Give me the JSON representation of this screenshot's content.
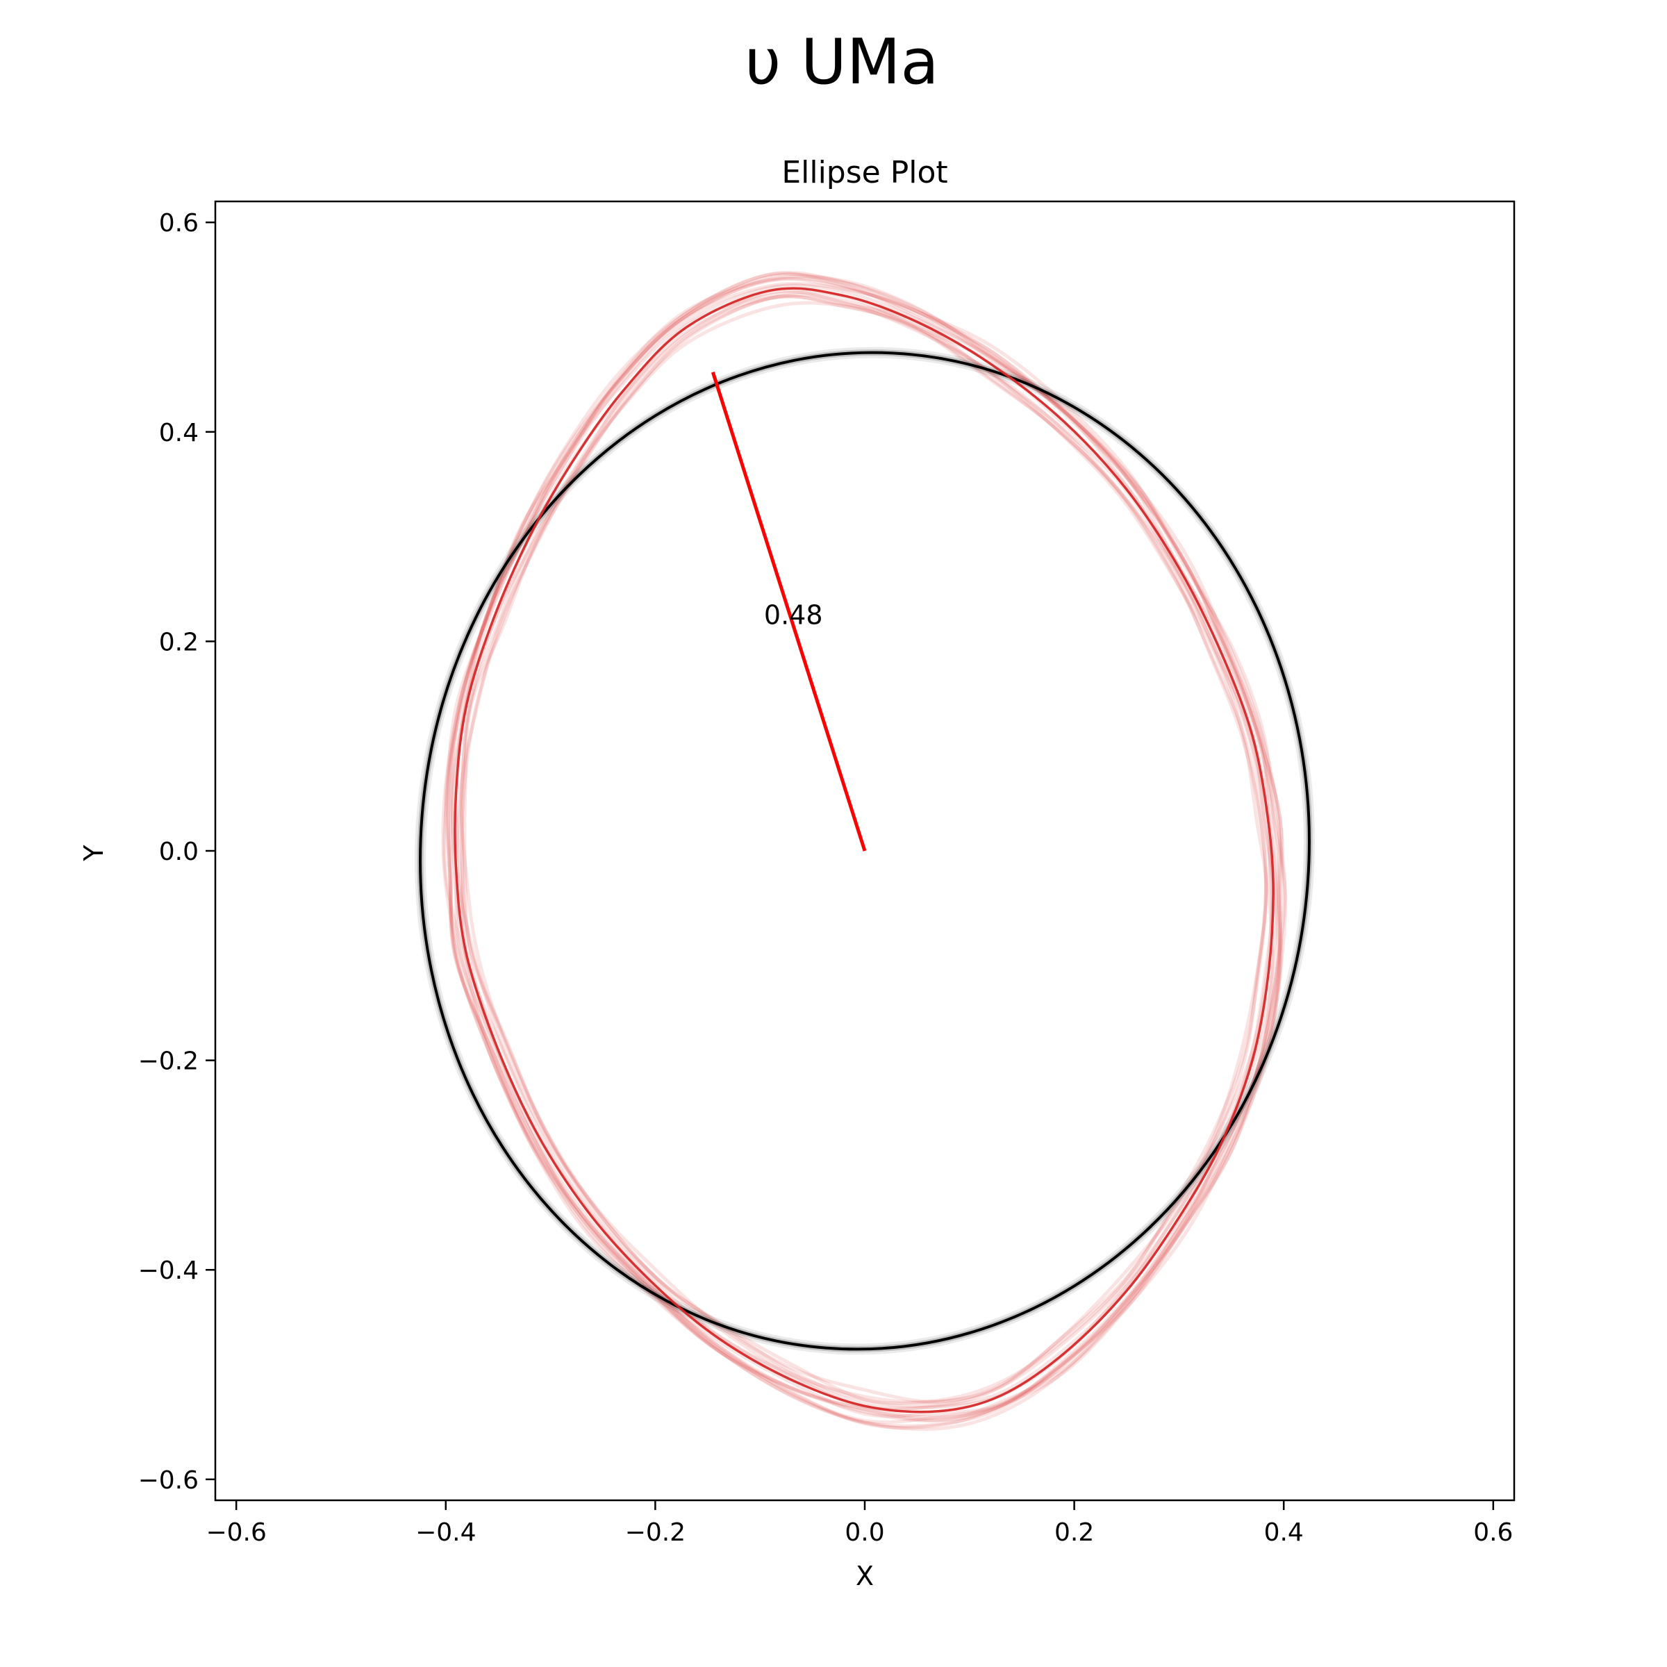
{
  "chart_data": {
    "type": "line",
    "suptitle": "υ UMa",
    "title": "Ellipse Plot",
    "xlabel": "X",
    "ylabel": "Y",
    "xlim": [
      -0.62,
      0.62
    ],
    "ylim": [
      -0.62,
      0.62
    ],
    "xticks": [
      -0.6,
      -0.4,
      -0.2,
      0.0,
      0.2,
      0.4,
      0.6
    ],
    "yticks": [
      -0.6,
      -0.4,
      -0.2,
      0.0,
      0.2,
      0.4,
      0.6
    ],
    "xtick_labels": [
      "−0.6",
      "−0.4",
      "−0.2",
      "0.0",
      "0.2",
      "0.4",
      "0.6"
    ],
    "ytick_labels": [
      "−0.6",
      "−0.4",
      "−0.2",
      "0.0",
      "0.2",
      "0.4",
      "0.6"
    ],
    "grid": false,
    "series": [
      {
        "role": "fitted-ellipse",
        "color": "#000000",
        "center": [
          0.0,
          0.0
        ],
        "semi_major": 0.476,
        "semi_minor": 0.424,
        "rotation_deg": 85.5
      },
      {
        "role": "observed-outline",
        "color": "#d62728",
        "points": [
          [
            -0.09,
            0.535
          ],
          [
            -0.02,
            0.53
          ],
          [
            0.05,
            0.505
          ],
          [
            0.12,
            0.465
          ],
          [
            0.19,
            0.41
          ],
          [
            0.25,
            0.345
          ],
          [
            0.3,
            0.27
          ],
          [
            0.34,
            0.19
          ],
          [
            0.37,
            0.11
          ],
          [
            0.385,
            0.03
          ],
          [
            0.39,
            -0.04
          ],
          [
            0.385,
            -0.12
          ],
          [
            0.37,
            -0.2
          ],
          [
            0.34,
            -0.28
          ],
          [
            0.3,
            -0.35
          ],
          [
            0.25,
            -0.42
          ],
          [
            0.19,
            -0.48
          ],
          [
            0.13,
            -0.52
          ],
          [
            0.07,
            -0.535
          ],
          [
            0.0,
            -0.53
          ],
          [
            -0.07,
            -0.505
          ],
          [
            -0.14,
            -0.465
          ],
          [
            -0.2,
            -0.415
          ],
          [
            -0.26,
            -0.35
          ],
          [
            -0.31,
            -0.275
          ],
          [
            -0.35,
            -0.19
          ],
          [
            -0.38,
            -0.1
          ],
          [
            -0.39,
            -0.02
          ],
          [
            -0.39,
            0.06
          ],
          [
            -0.38,
            0.14
          ],
          [
            -0.355,
            0.22
          ],
          [
            -0.32,
            0.3
          ],
          [
            -0.28,
            0.37
          ],
          [
            -0.23,
            0.44
          ],
          [
            -0.17,
            0.5
          ]
        ]
      }
    ],
    "radius_segment": {
      "color": "#ff0000",
      "from": [
        0.0,
        0.0
      ],
      "to": [
        -0.145,
        0.457
      ],
      "label": "0.48",
      "label_at": [
        -0.075,
        0.225
      ]
    }
  }
}
